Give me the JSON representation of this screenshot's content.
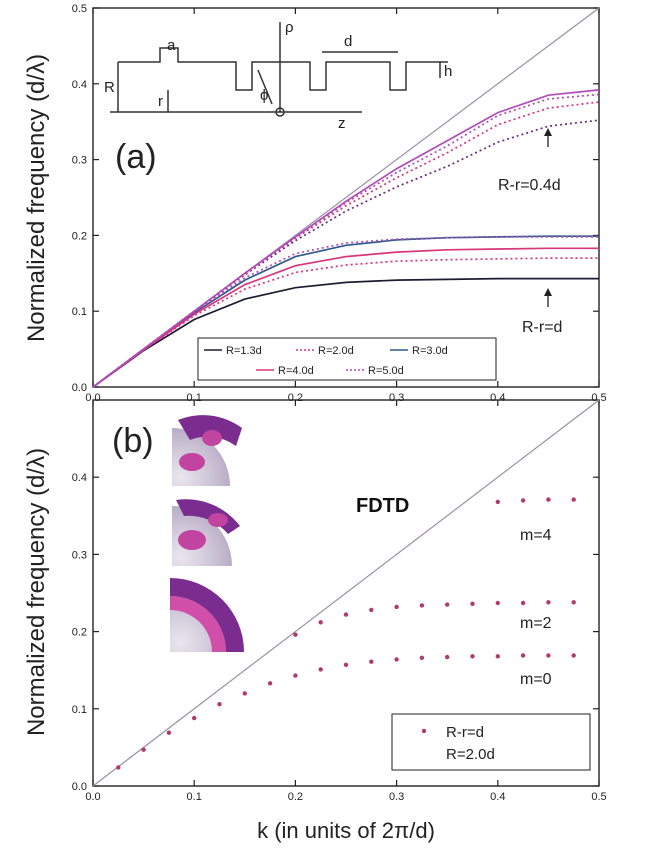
{
  "colors": {
    "axis": "#222222",
    "light_line": "#9a90a8",
    "black_series": "#1c1c34",
    "red_series": "#d8357a",
    "blue_series": "#2f5a8c",
    "magenta_series": "#b04cb8",
    "purple_series": "#6a2a80",
    "fdtd_points": "#b03a6c"
  },
  "figure": {
    "y_label": "Normalized frequency (d/λ)",
    "x_label": "k (in units of 2π/d)"
  },
  "chart_data": [
    {
      "panel": "(a)",
      "type": "line",
      "xlim": [
        0.0,
        0.5
      ],
      "ylim": [
        0.0,
        0.5
      ],
      "x_ticks": [
        "0.0",
        "0.1",
        "0.2",
        "0.3",
        "0.4",
        "0.5"
      ],
      "y_ticks": [
        "0.0",
        "0.1",
        "0.2",
        "0.3",
        "0.4",
        "0.5"
      ],
      "ylabel": "Normalized frequency (d/λ)",
      "annotations": [
        "R-r=0.4d",
        "R-r=d"
      ],
      "inset_labels": [
        "a",
        "d",
        "R",
        "r",
        "ρ",
        "ϕ",
        "z",
        "h"
      ],
      "legend": {
        "placement": "bottom-center",
        "entries": [
          "R=1.3d",
          "R=2.0d",
          "R=3.0d",
          "R=4.0d",
          "R=5.0d"
        ]
      },
      "light_line": {
        "x": [
          0.0,
          0.5
        ],
        "y": [
          0.0,
          0.5
        ]
      },
      "series": [
        {
          "name": "R=1.3d",
          "group": "R-r=d",
          "style": "solid",
          "color": "#1c1c34",
          "x": [
            0.0,
            0.05,
            0.1,
            0.15,
            0.2,
            0.25,
            0.3,
            0.35,
            0.4,
            0.45,
            0.5
          ],
          "y": [
            0.0,
            0.048,
            0.089,
            0.116,
            0.131,
            0.138,
            0.141,
            0.142,
            0.143,
            0.143,
            0.143
          ]
        },
        {
          "name": "R=2.0d",
          "group": "R-r=d",
          "style": "dotted",
          "color": "#d8357a",
          "x": [
            0.0,
            0.05,
            0.1,
            0.15,
            0.2,
            0.25,
            0.3,
            0.35,
            0.4,
            0.45,
            0.5
          ],
          "y": [
            0.0,
            0.049,
            0.094,
            0.129,
            0.151,
            0.161,
            0.166,
            0.168,
            0.169,
            0.17,
            0.17
          ]
        },
        {
          "name": "R=3.0d",
          "group": "R-r=d",
          "style": "solid",
          "color": "#2f5a8c",
          "x": [
            0.0,
            0.05,
            0.1,
            0.15,
            0.2,
            0.25,
            0.3,
            0.35,
            0.4,
            0.45,
            0.5
          ],
          "y": [
            0.0,
            0.05,
            0.098,
            0.141,
            0.172,
            0.187,
            0.194,
            0.197,
            0.198,
            0.199,
            0.199
          ]
        },
        {
          "name": "R=4.0d",
          "group": "R-r=d",
          "style": "solid",
          "color": "#d8357a",
          "x": [
            0.0,
            0.05,
            0.1,
            0.15,
            0.2,
            0.25,
            0.3,
            0.35,
            0.4,
            0.45,
            0.5
          ],
          "y": [
            0.0,
            0.049,
            0.096,
            0.135,
            0.16,
            0.172,
            0.178,
            0.181,
            0.182,
            0.183,
            0.183
          ]
        },
        {
          "name": "R=5.0d",
          "group": "R-r=d",
          "style": "dotted",
          "color": "#b04cb8",
          "x": [
            0.0,
            0.05,
            0.1,
            0.15,
            0.2,
            0.25,
            0.3,
            0.35,
            0.4,
            0.45,
            0.5
          ],
          "y": [
            0.0,
            0.05,
            0.099,
            0.144,
            0.176,
            0.19,
            0.195,
            0.197,
            0.198,
            0.198,
            0.198
          ]
        },
        {
          "name": "R=1.3d",
          "group": "R-r=0.4d",
          "style": "dotted",
          "color": "#6a2a80",
          "x": [
            0.0,
            0.05,
            0.1,
            0.15,
            0.2,
            0.25,
            0.3,
            0.35,
            0.4,
            0.45,
            0.5
          ],
          "y": [
            0.0,
            0.05,
            0.1,
            0.148,
            0.193,
            0.232,
            0.264,
            0.291,
            0.323,
            0.344,
            0.352
          ]
        },
        {
          "name": "R=2.0d",
          "group": "R-r=0.4d",
          "style": "dotted",
          "color": "#d8357a",
          "x": [
            0.0,
            0.05,
            0.1,
            0.15,
            0.2,
            0.25,
            0.3,
            0.35,
            0.4,
            0.45,
            0.5
          ],
          "y": [
            0.0,
            0.05,
            0.1,
            0.149,
            0.196,
            0.239,
            0.276,
            0.309,
            0.346,
            0.368,
            0.376
          ]
        },
        {
          "name": "R=5.0d",
          "group": "R-r=0.4d",
          "style": "dotted",
          "color": "#b04cb8",
          "x": [
            0.0,
            0.05,
            0.1,
            0.15,
            0.2,
            0.25,
            0.3,
            0.35,
            0.4,
            0.45,
            0.5
          ],
          "y": [
            0.0,
            0.05,
            0.1,
            0.15,
            0.197,
            0.243,
            0.283,
            0.318,
            0.358,
            0.38,
            0.386
          ]
        },
        {
          "name": "R=3.0d",
          "group": "R-r=0.4d",
          "style": "solid",
          "color": "#b04cb8",
          "x": [
            0.0,
            0.05,
            0.1,
            0.15,
            0.2,
            0.25,
            0.3,
            0.35,
            0.4,
            0.45,
            0.5
          ],
          "y": [
            0.0,
            0.05,
            0.1,
            0.15,
            0.198,
            0.245,
            0.288,
            0.325,
            0.362,
            0.385,
            0.392
          ]
        }
      ]
    },
    {
      "panel": "(b)",
      "type": "scatter",
      "xlim": [
        0.0,
        0.5
      ],
      "ylim": [
        0.0,
        0.5
      ],
      "x_ticks": [
        "0.0",
        "0.1",
        "0.2",
        "0.3",
        "0.4",
        "0.5"
      ],
      "y_ticks": [
        "0.0",
        "0.1",
        "0.2",
        "0.3",
        "0.4"
      ],
      "ylabel": "Normalized frequency (d/λ)",
      "xlabel": "k (in units of 2π/d)",
      "annotations": [
        "FDTD",
        "m=4",
        "m=2",
        "m=0"
      ],
      "legend": {
        "placement": "bottom-right",
        "entries": [
          "R-r=d",
          "R=2.0d"
        ]
      },
      "light_line": {
        "x": [
          0.0,
          0.5
        ],
        "y": [
          0.0,
          0.5
        ]
      },
      "series": [
        {
          "name": "m=0",
          "x": [
            0.025,
            0.05,
            0.075,
            0.1,
            0.125,
            0.15,
            0.175,
            0.2,
            0.225,
            0.25,
            0.275,
            0.3,
            0.325,
            0.35,
            0.375,
            0.4,
            0.425,
            0.45,
            0.475
          ],
          "y": [
            0.024,
            0.047,
            0.069,
            0.088,
            0.106,
            0.12,
            0.133,
            0.143,
            0.151,
            0.157,
            0.161,
            0.164,
            0.166,
            0.167,
            0.168,
            0.168,
            0.169,
            0.169,
            0.169
          ]
        },
        {
          "name": "m=2",
          "x": [
            0.2,
            0.225,
            0.25,
            0.275,
            0.3,
            0.325,
            0.35,
            0.375,
            0.4,
            0.425,
            0.45,
            0.475
          ],
          "y": [
            0.196,
            0.212,
            0.222,
            0.228,
            0.232,
            0.234,
            0.235,
            0.236,
            0.237,
            0.237,
            0.238,
            0.238
          ]
        },
        {
          "name": "m=4",
          "x": [
            0.4,
            0.425,
            0.45,
            0.475
          ],
          "y": [
            0.368,
            0.37,
            0.371,
            0.371
          ]
        }
      ]
    }
  ]
}
